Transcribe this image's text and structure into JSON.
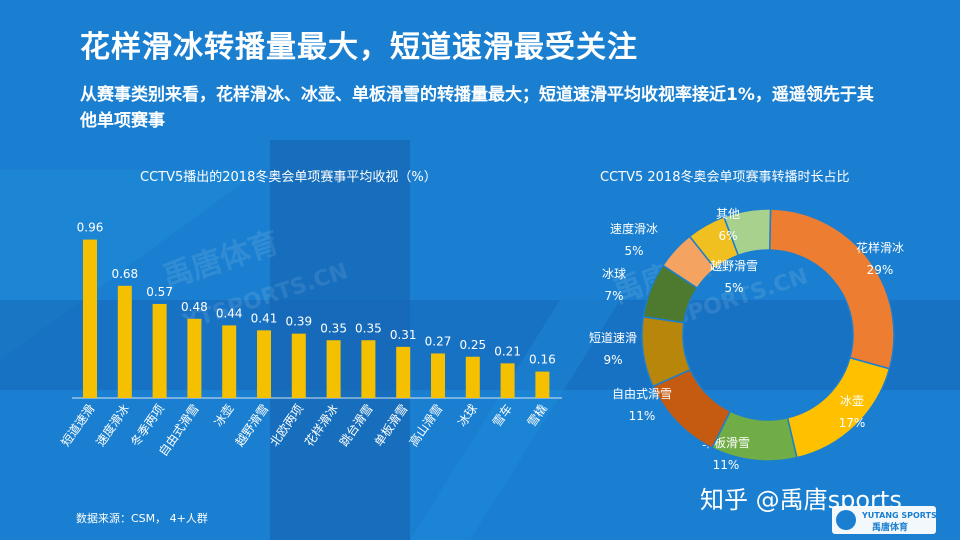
{
  "slide": {
    "title": "花样滑冰转播量最大，短道速滑最受关注",
    "subtitle": "从赛事类别来看，花样滑冰、冰壶、单板滑雪的转播量最大；短道速滑平均收视率接近1%，遥遥领先于其他单项赛事",
    "source": "数据来源：CSM， 4+人群",
    "credit": "知乎 @禹唐sports",
    "watermark_cn": "禹唐体育",
    "watermark_en": "YTSPORTS.CN",
    "logo_text": "YUTANG SPORTS",
    "logo_cn": "禹唐体育"
  },
  "colors": {
    "background": "#1a7fd0",
    "background_dark": "#1566b5",
    "bar": "#f5c000",
    "text": "#ffffff"
  },
  "chart_data": [
    {
      "type": "bar",
      "title": "CCTV5播出的2018冬奥会单项赛事平均收视（%）",
      "categories": [
        "短道速滑",
        "速度滑冰",
        "冬季两项",
        "自由式滑雪",
        "冰壶",
        "越野滑雪",
        "北欧两项",
        "花样滑冰",
        "跳台滑雪",
        "单板滑雪",
        "高山滑雪",
        "冰球",
        "雪车",
        "雪橇"
      ],
      "values": [
        0.96,
        0.68,
        0.57,
        0.48,
        0.44,
        0.41,
        0.39,
        0.35,
        0.35,
        0.31,
        0.27,
        0.25,
        0.21,
        0.16
      ],
      "value_labels": [
        "0.96",
        "0.68",
        "0.57",
        "0.48",
        "0.44",
        "0.41",
        "0.39",
        "0.35",
        "0.35",
        "0.31",
        "0.27",
        "0.25",
        "0.21",
        "0.16"
      ],
      "ylim": [
        0,
        1.0
      ],
      "grid": false,
      "color": "#f5c000"
    },
    {
      "type": "pie",
      "style": "donut",
      "title": "CCTV5 2018冬奥会单项赛事转播时长占比",
      "slices": [
        {
          "name": "花样滑冰",
          "value": 29,
          "label": "29%",
          "color": "#ed7d31"
        },
        {
          "name": "冰壶",
          "value": 17,
          "label": "17%",
          "color": "#ffc000"
        },
        {
          "name": "单板滑雪",
          "value": 11,
          "label": "11%",
          "color": "#70ad47"
        },
        {
          "name": "自由式滑雪",
          "value": 11,
          "label": "11%",
          "color": "#c55a11"
        },
        {
          "name": "短道速滑",
          "value": 9,
          "label": "9%",
          "color": "#b8860b"
        },
        {
          "name": "冰球",
          "value": 7,
          "label": "7%",
          "color": "#4e7a30"
        },
        {
          "name": "速度滑冰",
          "value": 5,
          "label": "5%",
          "color": "#f4a460"
        },
        {
          "name": "越野滑雪",
          "value": 5,
          "label": "5%",
          "color": "#f0c020"
        },
        {
          "name": "其他",
          "value": 6,
          "label": "6%",
          "color": "#a9d18e"
        }
      ]
    }
  ]
}
